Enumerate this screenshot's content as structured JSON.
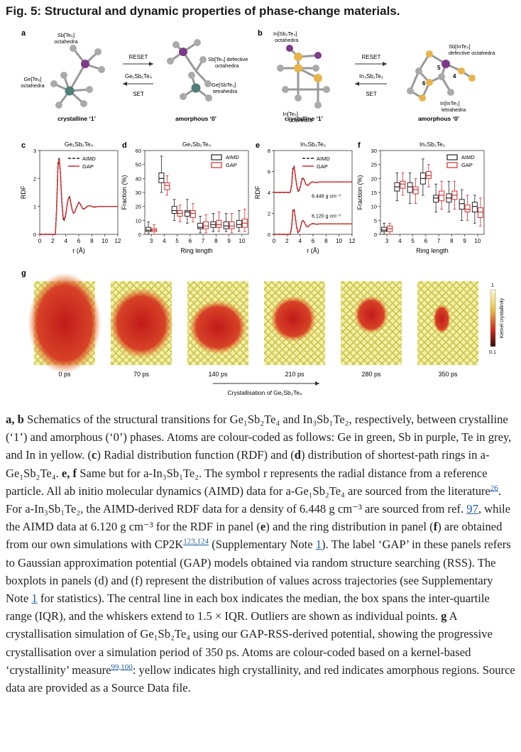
{
  "figure_title": "Fig. 5: Structural and dynamic properties of phase-change materials.",
  "panel_a": {
    "letter": "a",
    "sb_label": "Sb[Te₆]",
    "sb_sub": "octahedra",
    "ge_label": "Ge[Te₆]",
    "ge_sub": "octahedra",
    "reset": "RESET",
    "set": "SET",
    "compound": "Ge₁Sb₂Te₄",
    "defective": "Sb[Te₄] defective",
    "defective_sub": "octahedra",
    "tetra": "Ge[SbTe₃]",
    "tetra_sub": "tetrahedra",
    "crystalline": "crystalline ‘1’",
    "amorphous": "amorphous ‘0’"
  },
  "panel_b": {
    "letter": "b",
    "in_oct": "In[Sb₂Te₄]",
    "in_oct_sub": "octahedra",
    "in_te": "In[Te₆]",
    "in_te_sub": "octahedra",
    "reset": "RESET",
    "set": "SET",
    "compound": "In₃Sb₁Te₂",
    "sb_in": "Sb[InTe₄]",
    "sb_in_sub": "defective octahedra",
    "in_tetra": "In[InTe₃]",
    "in_tetra_sub": "tetrahedra",
    "ring4": "4",
    "ring5": "5",
    "ring6": "6",
    "crystalline": "crystalline ‘1’",
    "amorphous": "amorphous ‘0’"
  },
  "panel_c": {
    "letter": "c",
    "title": "Ge₁Sb₂Te₄",
    "ylabel": "RDF",
    "xlabel": "r (Å)",
    "legend": [
      "AIMD",
      "GAP"
    ],
    "xticks": [
      "0",
      "2",
      "4",
      "6",
      "8",
      "10",
      "12"
    ],
    "yticks": [
      "0",
      "1",
      "2",
      "3"
    ]
  },
  "panel_d": {
    "letter": "d",
    "title": "Ge₁Sb₂Te₄",
    "ylabel": "Fraction (%)",
    "xlabel": "Ring length",
    "legend": [
      "AIMD",
      "GAP"
    ],
    "xticks": [
      "3",
      "4",
      "5",
      "6",
      "7",
      "8",
      "9",
      "10"
    ],
    "yticks": [
      "0",
      "10",
      "20",
      "30",
      "40",
      "50",
      "60"
    ]
  },
  "panel_e": {
    "letter": "e",
    "title": "In₃Sb₁Te₂",
    "ylabel": "RDF",
    "xlabel": "r (Å)",
    "legend": [
      "AIMD",
      "GAP"
    ],
    "xticks": [
      "0",
      "2",
      "4",
      "6",
      "8",
      "10",
      "12"
    ],
    "yticks": [
      "0",
      "2",
      "4",
      "6",
      "8"
    ],
    "density_high": "6.448 g cm⁻³",
    "density_low": "6.120 g cm⁻³"
  },
  "panel_f": {
    "letter": "f",
    "title": "In₃Sb₁Te₂",
    "ylabel": "Fraction (%)",
    "xlabel": "Ring length",
    "legend": [
      "AIMD",
      "GAP"
    ],
    "xticks": [
      "3",
      "4",
      "5",
      "6",
      "7",
      "8",
      "9",
      "10"
    ],
    "yticks": [
      "0",
      "5",
      "10",
      "15",
      "20",
      "25",
      "30"
    ]
  },
  "panel_g": {
    "letter": "g",
    "times": [
      "0 ps",
      "70 ps",
      "140 ps",
      "210 ps",
      "280 ps",
      "350 ps"
    ],
    "caption": "Crystallisation of Ge₁Sb₂Te₄",
    "colorbar_label": "Kernel crystallinity",
    "colorbar_max": "1",
    "colorbar_min": "0.1"
  },
  "colors": {
    "aimd": "#222222",
    "gap": "#d62a2a",
    "link": "#1b5c9e",
    "ge": "#4e7f78",
    "sb": "#7b3a8a",
    "te": "#9a9a9a",
    "in": "#e8b54a"
  },
  "chart_data": [
    {
      "type": "line",
      "panel": "c",
      "title": "Ge₁Sb₂Te₄",
      "xlabel": "r (Å)",
      "ylabel": "RDF",
      "xlim": [
        0,
        12
      ],
      "ylim": [
        0,
        3
      ],
      "x": [
        0,
        2.4,
        2.6,
        2.8,
        3.0,
        3.2,
        3.4,
        3.6,
        3.8,
        4.0,
        4.2,
        4.4,
        4.6,
        4.8,
        5.0,
        5.2,
        5.4,
        5.6,
        5.8,
        6.0,
        6.2,
        6.4,
        6.6,
        6.8,
        7.0,
        7.4,
        7.8,
        8.2,
        8.6,
        9,
        10,
        11,
        12
      ],
      "series": [
        {
          "name": "AIMD",
          "values": [
            0,
            0,
            1.0,
            2.55,
            2.75,
            2.1,
            1.1,
            0.55,
            0.5,
            0.7,
            1.05,
            1.3,
            1.35,
            1.1,
            0.85,
            0.75,
            0.8,
            0.95,
            1.05,
            1.15,
            1.1,
            1.0,
            0.92,
            0.9,
            0.93,
            1.02,
            1.02,
            0.98,
            0.98,
            1.0,
            1.0,
            1.0,
            1.0
          ]
        },
        {
          "name": "GAP",
          "values": [
            0,
            0,
            0.9,
            2.45,
            2.7,
            2.1,
            1.15,
            0.6,
            0.55,
            0.72,
            1.05,
            1.28,
            1.32,
            1.1,
            0.86,
            0.76,
            0.8,
            0.94,
            1.04,
            1.13,
            1.1,
            1.0,
            0.93,
            0.91,
            0.94,
            1.02,
            1.02,
            0.98,
            0.98,
            1.0,
            1.0,
            1.0,
            1.0
          ]
        }
      ]
    },
    {
      "type": "box",
      "panel": "d",
      "title": "Ge₁Sb₂Te₄",
      "xlabel": "Ring length",
      "ylabel": "Fraction (%)",
      "ylim": [
        0,
        60
      ],
      "categories": [
        "3",
        "4",
        "5",
        "6",
        "7",
        "8",
        "9",
        "10"
      ],
      "series": [
        {
          "name": "AIMD",
          "median": [
            3,
            40,
            17,
            16,
            5,
            7,
            6,
            7
          ],
          "q1": [
            2,
            37,
            15,
            13,
            4,
            5,
            4,
            5
          ],
          "q3": [
            5,
            44,
            20,
            17,
            8,
            9,
            9,
            10
          ],
          "wlo": [
            0,
            30,
            10,
            8,
            1,
            2,
            2,
            2
          ],
          "whi": [
            9,
            56,
            25,
            25,
            13,
            15,
            15,
            17
          ]
        },
        {
          "name": "GAP",
          "median": [
            3,
            35,
            15,
            15,
            6,
            7,
            6,
            8
          ],
          "q1": [
            2,
            32,
            13,
            12,
            4,
            5,
            4,
            5
          ],
          "q3": [
            4,
            37,
            17,
            17,
            9,
            10,
            9,
            11
          ],
          "wlo": [
            0,
            28,
            9,
            9,
            1,
            2,
            1,
            2
          ],
          "whi": [
            7,
            42,
            21,
            22,
            14,
            16,
            15,
            18
          ]
        }
      ]
    },
    {
      "type": "line",
      "panel": "e",
      "title": "In₃Sb₁Te₂",
      "xlabel": "r (Å)",
      "ylabel": "RDF",
      "xlim": [
        0,
        12
      ],
      "ylim": [
        0,
        8
      ],
      "x": [
        0,
        2.5,
        2.7,
        2.9,
        3.1,
        3.3,
        3.5,
        3.7,
        3.9,
        4.1,
        4.3,
        4.5,
        4.7,
        4.9,
        5.1,
        5.3,
        5.5,
        5.7,
        5.9,
        6.1,
        6.3,
        6.6,
        7.0,
        7.5,
        8,
        9,
        10,
        11,
        12
      ],
      "series": [
        {
          "name": "AIMD (6.448 g cm⁻³)",
          "values": [
            4,
            4,
            4.7,
            6.4,
            6.5,
            5.5,
            4.6,
            4.1,
            4.2,
            4.7,
            5.3,
            5.4,
            5.1,
            4.8,
            4.65,
            4.7,
            4.85,
            4.95,
            5.0,
            5.0,
            4.95,
            4.95,
            5.0,
            5.0,
            5.0,
            5.0,
            5.0,
            5.0,
            5.0
          ]
        },
        {
          "name": "GAP (6.448 g cm⁻³)",
          "values": [
            4,
            4,
            4.6,
            6.2,
            6.4,
            5.5,
            4.65,
            4.15,
            4.25,
            4.7,
            5.25,
            5.35,
            5.1,
            4.8,
            4.66,
            4.72,
            4.86,
            4.96,
            5.0,
            5.0,
            4.96,
            4.96,
            5.0,
            5.0,
            5.0,
            5.0,
            5.0,
            5.0,
            5.0
          ]
        },
        {
          "name": "AIMD (6.120 g cm⁻³)",
          "values": [
            0,
            0,
            0.7,
            2.3,
            2.4,
            1.5,
            0.6,
            0.15,
            0.25,
            0.7,
            1.25,
            1.35,
            1.1,
            0.85,
            0.7,
            0.75,
            0.9,
            0.98,
            1.02,
            1.02,
            0.98,
            0.97,
            1.0,
            1.0,
            1.0,
            1.0,
            1.0,
            1.0,
            1.0
          ]
        },
        {
          "name": "GAP (6.120 g cm⁻³)",
          "values": [
            0,
            0,
            0.6,
            2.2,
            2.35,
            1.5,
            0.65,
            0.2,
            0.3,
            0.72,
            1.22,
            1.32,
            1.1,
            0.85,
            0.72,
            0.76,
            0.9,
            0.98,
            1.02,
            1.02,
            0.98,
            0.97,
            1.0,
            1.0,
            1.0,
            1.0,
            1.0,
            1.0,
            1.0
          ]
        }
      ]
    },
    {
      "type": "box",
      "panel": "f",
      "title": "In₃Sb₁Te₂",
      "xlabel": "Ring length",
      "ylabel": "Fraction (%)",
      "ylim": [
        0,
        30
      ],
      "categories": [
        "3",
        "4",
        "5",
        "6",
        "7",
        "8",
        "9",
        "10"
      ],
      "series": [
        {
          "name": "AIMD",
          "median": [
            1.5,
            17,
            17,
            20,
            13,
            13,
            11,
            10
          ],
          "q1": [
            1,
            15.5,
            15,
            18,
            11.5,
            11.5,
            9,
            8
          ],
          "q3": [
            2.5,
            18.5,
            18.5,
            22,
            14,
            14.5,
            12.5,
            11.5
          ],
          "wlo": [
            0,
            12,
            11,
            14,
            8,
            8,
            5,
            4
          ],
          "whi": [
            4,
            22,
            22,
            27,
            18,
            19,
            16,
            14
          ]
        },
        {
          "name": "GAP",
          "median": [
            2,
            18,
            16,
            21,
            14,
            14,
            9,
            8
          ],
          "q1": [
            1,
            16.5,
            14.5,
            20,
            12,
            12.5,
            8,
            6
          ],
          "q3": [
            3,
            19,
            17,
            22.5,
            15.5,
            15.5,
            10.5,
            9.5
          ],
          "wlo": [
            0,
            14,
            11,
            17,
            9,
            9,
            5,
            3
          ],
          "whi": [
            4,
            22,
            20,
            25,
            19,
            19,
            14,
            13
          ]
        }
      ]
    }
  ],
  "caption": {
    "p1a": "a, b",
    "p1b": " Schematics of the structural transitions for Ge₁Sb₂Te₄ and In₃Sb₁Te₂, respectively, between crystalline (‘1’) and amorphous (‘0’) phases. Atoms are colour-coded as follows: Ge in green, Sb in purple, Te in grey, and In in yellow. (",
    "c": "c",
    "p1c": ") Radial distribution function (RDF) and (",
    "d": "d",
    "p1d": ") distribution of shortest-path rings in a-Ge₁Sb₂Te₄. ",
    "ef": "e, f",
    "p1e": " Same but for a-In₃Sb₁Te₂. The symbol r represents the radial distance from a reference particle. All ab initio molecular dynamics (AIMD) data for a-Ge₁Sb₂Te₄ are sourced from the literature",
    "ref26": "26",
    "p1f": ". For a-In₃Sb₁Te₂, the AIMD-derived RDF data for a density of 6.448 g cm⁻³ are sourced from ref. ",
    "ref97": "97",
    "p1g": ", while the AIMD data at 6.120 g cm⁻³ for the RDF in panel (",
    "e": "e",
    "p1h": ") and the ring distribution in panel (",
    "f": "f",
    "p1i": ") are obtained from our own simulations with CP2K",
    "ref123": "123,124",
    "p1j": " (Supplementary Note ",
    "note1": "1",
    "p1k": "). The label ‘GAP’ in these panels refers to Gaussian approximation potential (GAP) models obtained via random structure searching (RSS). The boxplots in panels (d) and (f) represent the distribution of values across trajectories (see Supplementary Note ",
    "note1b": "1",
    "p1l": " for statistics). The central line in each box indicates the median, the box spans the inter-quartile range (IQR), and the whiskers extend to 1.5 × IQR. Outliers are shown as individual points. ",
    "g": "g",
    "p1m": " A crystallisation simulation of Ge₁Sb₂Te₄ using our GAP-RSS-derived potential, showing the progressive crystallisation over a simulation period of 350 ps. Atoms are colour-coded based on a kernel-based ‘crystallinity’ measure",
    "ref99": "99,100",
    "p1n": ": yellow indicates high crystallinity, and red indicates amorphous regions. Source data are provided as a Source Data file."
  }
}
